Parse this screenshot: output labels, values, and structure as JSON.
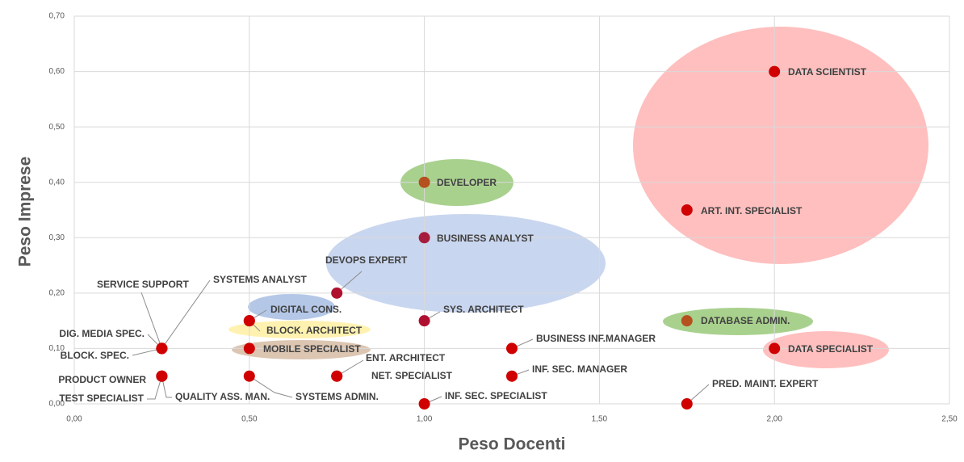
{
  "chart_data": {
    "type": "scatter",
    "xlabel": "Peso Docenti",
    "ylabel": "Peso Imprese",
    "xlim": [
      0,
      2.5
    ],
    "ylim": [
      0,
      0.7
    ],
    "xticks": [
      {
        "value": 0,
        "label": "0,00"
      },
      {
        "value": 0.5,
        "label": "0,50"
      },
      {
        "value": 1,
        "label": "1,00"
      },
      {
        "value": 1.5,
        "label": "1,50"
      },
      {
        "value": 2,
        "label": "2,00"
      },
      {
        "value": 2.5,
        "label": "2,50"
      }
    ],
    "yticks": [
      {
        "value": 0,
        "label": "0,00"
      },
      {
        "value": 0.1,
        "label": "0,10"
      },
      {
        "value": 0.2,
        "label": "0,20"
      },
      {
        "value": 0.3,
        "label": "0,30"
      },
      {
        "value": 0.4,
        "label": "0,40"
      },
      {
        "value": 0.5,
        "label": "0,50"
      },
      {
        "value": 0.6,
        "label": "0,60"
      },
      {
        "value": 0.7,
        "label": "0,70"
      }
    ],
    "grid": true,
    "labels": [
      "DATA SCIENTIST",
      "ART. INT. SPECIALIST",
      "DEVELOPER",
      "BUSINESS ANALYST",
      "DEVOPS EXPERT",
      "SYS. ARCHITECT",
      "DATABASE ADMIN.",
      "DATA SPECIALIST",
      "BUSINESS INF.MANAGER",
      "INF. SEC. MANAGER",
      "PRED. MAINT. EXPERT",
      "INF. SEC. SPECIALIST",
      "ENT. ARCHITECT",
      "NET. SPECIALIST",
      "SYSTEMS ADMIN.",
      "MOBILE SPECIALIST",
      "BLOCK. ARCHITECT",
      "DIGITAL CONS.",
      "SERVICE SUPPORT",
      "SYSTEMS ANALYST",
      "DIG. MEDIA SPEC.",
      "BLOCK. SPEC.",
      "PRODUCT OWNER",
      "TEST SPECIALIST",
      "QUALITY ASS. MAN."
    ],
    "x": [
      2,
      1.75,
      1,
      1,
      0.75,
      1,
      1.75,
      2,
      1.25,
      1.25,
      1.75,
      1,
      0.75,
      0.75,
      0.5,
      0.5,
      0.5,
      0.5,
      0.25,
      0.25,
      0.25,
      0.25,
      0.25,
      0.25,
      0.25
    ],
    "y": [
      0.6,
      0.35,
      0.4,
      0.3,
      0.2,
      0.15,
      0.15,
      0.1,
      0.1,
      0.05,
      0,
      0,
      0.05,
      0.05,
      0.05,
      0.1,
      0.15,
      0.15,
      0.1,
      0.1,
      0.1,
      0.1,
      0.05,
      0.05,
      0.05
    ],
    "colors": [
      "#d00000",
      "#d00000",
      "#b5501f",
      "#a61c3c",
      "#b01030",
      "#b01030",
      "#b5501f",
      "#d00000",
      "#d00000",
      "#d00000",
      "#d00000",
      "#d00000",
      "#d00000",
      "#d00000",
      "#d00000",
      "#d00000",
      "#d00000",
      "#d00000",
      "#d00000",
      "#d00000",
      "#d00000",
      "#d00000",
      "#d00000",
      "#d00000",
      "#d00000"
    ]
  }
}
